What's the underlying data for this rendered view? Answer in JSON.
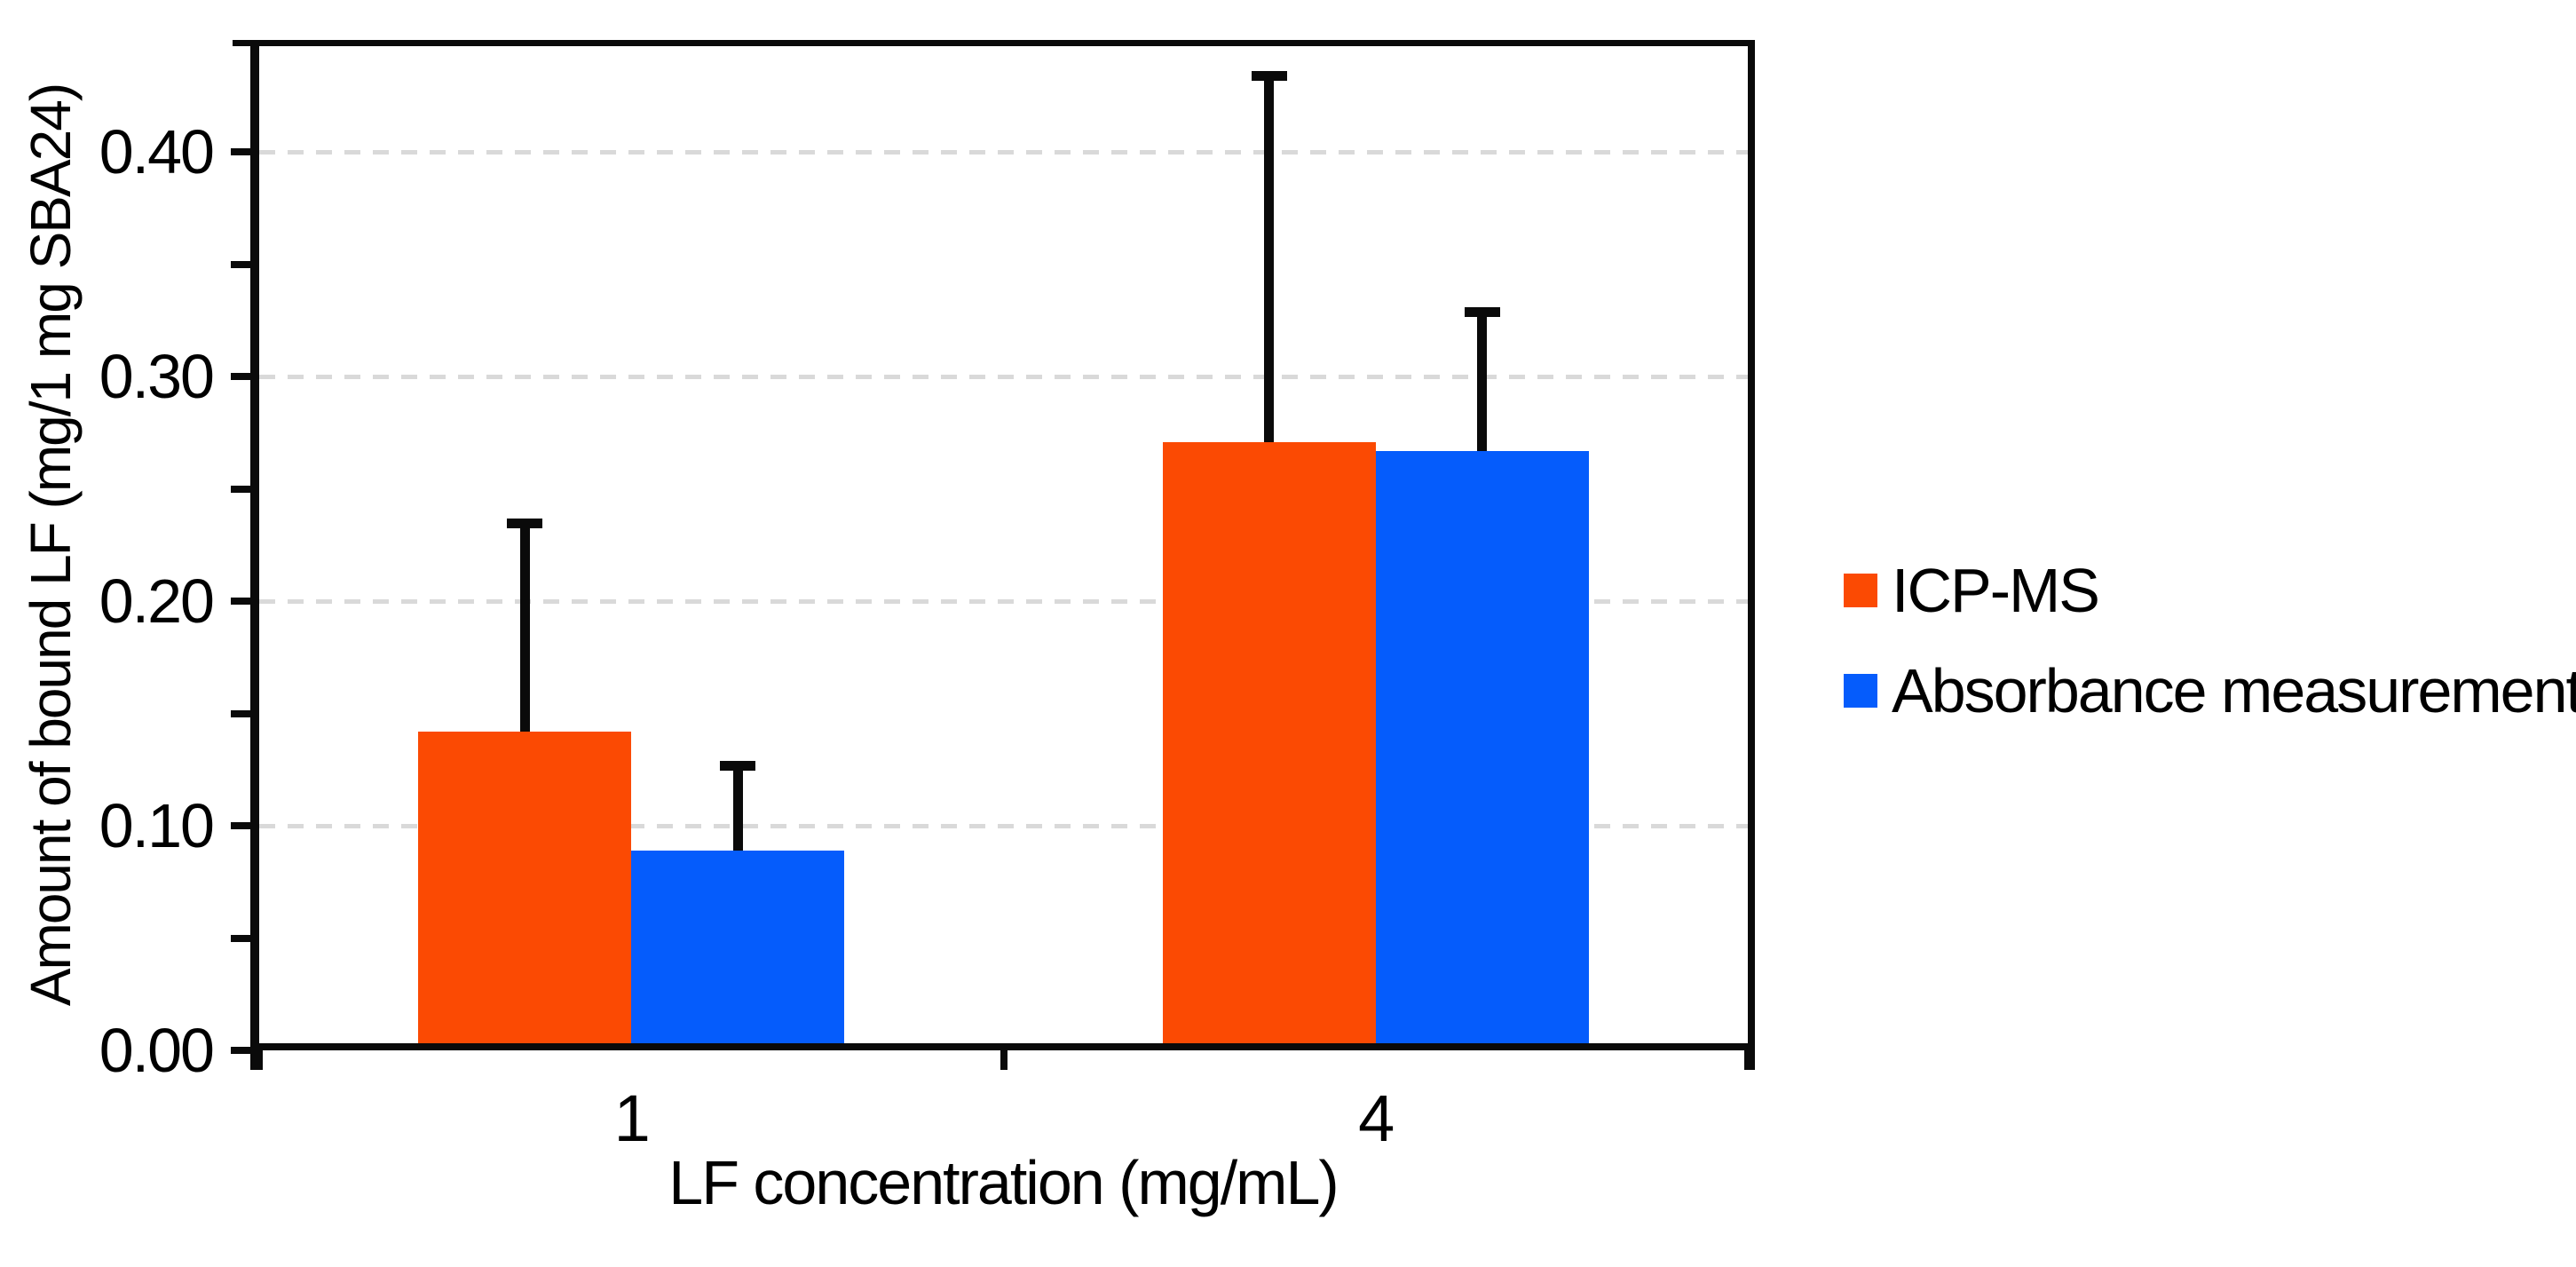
{
  "figure": {
    "background": "#ffffff"
  },
  "chart_data": {
    "type": "bar",
    "title": "",
    "categories": [
      "1",
      "4"
    ],
    "series": [
      {
        "name": "ICP-MS",
        "color": "#fb4a03",
        "values": [
          0.142,
          0.271
        ],
        "error_plus": [
          0.093,
          0.163
        ]
      },
      {
        "name": "Absorbance measurement",
        "color": "#055cfc",
        "values": [
          0.089,
          0.267
        ],
        "error_plus": [
          0.038,
          0.062
        ]
      }
    ],
    "xlabel": "LF concentration (mg/mL)",
    "ylabel": "Amount of bound LF (mg/1 mg SBA24)",
    "ylim": [
      0,
      0.45
    ],
    "yticks": {
      "step": 0.05,
      "labeled": [
        {
          "value": 0.0,
          "label": "0.00"
        },
        {
          "value": 0.1,
          "label": "0.10"
        },
        {
          "value": 0.2,
          "label": "0.20"
        },
        {
          "value": 0.3,
          "label": "0.30"
        },
        {
          "value": 0.4,
          "label": "0.40"
        }
      ]
    },
    "gridlines": {
      "values": [
        0.1,
        0.2,
        0.3,
        0.4
      ],
      "style": "dashed",
      "color": "#d9d9d9"
    },
    "xticks": {
      "fractions": [
        0,
        0.5,
        1
      ]
    },
    "legend": {
      "position": "right",
      "entries": [
        "ICP-MS",
        "Absorbance measurement"
      ]
    },
    "axis_color": "#0a0a0a"
  }
}
